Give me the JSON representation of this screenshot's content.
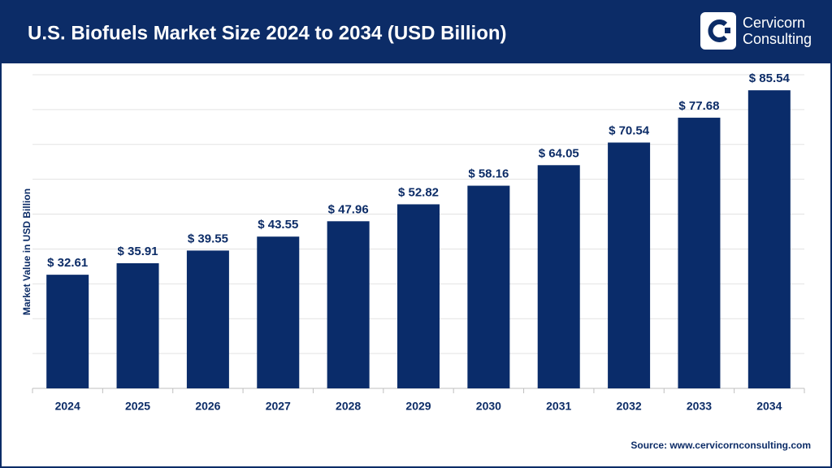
{
  "chart_data": {
    "type": "bar",
    "title": "U.S. Biofuels Market Size 2024 to 2034 (USD Billion)",
    "brand": [
      "Cervicorn",
      "Consulting"
    ],
    "y_label": "Market Value in USD Billion",
    "source": "Source: www.cervicornconsulting.com",
    "categories": [
      "2024",
      "2025",
      "2026",
      "2027",
      "2028",
      "2029",
      "2030",
      "2031",
      "2032",
      "2033",
      "2034"
    ],
    "values": [
      32.61,
      35.91,
      39.55,
      43.55,
      47.96,
      52.82,
      58.16,
      64.05,
      70.54,
      77.68,
      85.54
    ],
    "value_labels": [
      "$ 32.61",
      "$ 35.91",
      "$ 39.55",
      "$ 43.55",
      "$ 47.96",
      "$ 52.82",
      "$ 58.16",
      "$ 64.05",
      "$ 70.54",
      "$ 77.68",
      "$ 85.54"
    ],
    "color": "#0a2c6a",
    "ylim": [
      0,
      90
    ],
    "yticks": [
      0,
      10,
      20,
      30,
      40,
      50,
      60,
      70,
      80,
      90
    ],
    "grid": true
  }
}
